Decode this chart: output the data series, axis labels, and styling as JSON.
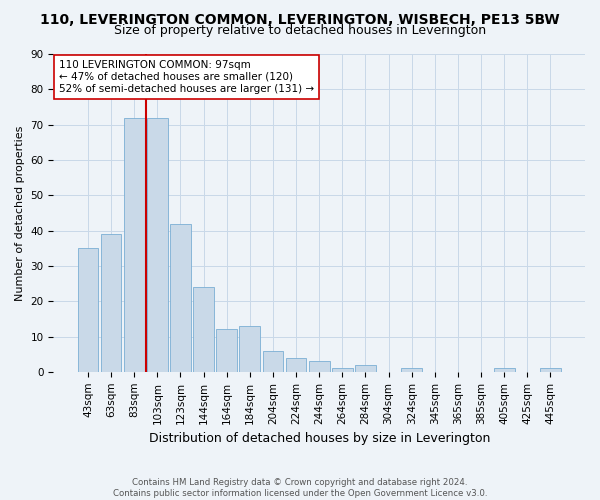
{
  "title": "110, LEVERINGTON COMMON, LEVERINGTON, WISBECH, PE13 5BW",
  "subtitle": "Size of property relative to detached houses in Leverington",
  "xlabel": "Distribution of detached houses by size in Leverington",
  "ylabel": "Number of detached properties",
  "categories": [
    "43sqm",
    "63sqm",
    "83sqm",
    "103sqm",
    "123sqm",
    "144sqm",
    "164sqm",
    "184sqm",
    "204sqm",
    "224sqm",
    "244sqm",
    "264sqm",
    "284sqm",
    "304sqm",
    "324sqm",
    "345sqm",
    "365sqm",
    "385sqm",
    "405sqm",
    "425sqm",
    "445sqm"
  ],
  "values": [
    35,
    39,
    72,
    72,
    42,
    24,
    12,
    13,
    6,
    4,
    3,
    1,
    2,
    0,
    1,
    0,
    0,
    0,
    1,
    0,
    1
  ],
  "bar_color": "#c9d9e8",
  "bar_edge_color": "#7bafd4",
  "grid_color": "#c8d8e8",
  "background_color": "#eef3f8",
  "vline_x_index": 2.5,
  "vline_color": "#cc0000",
  "annotation_text": "110 LEVERINGTON COMMON: 97sqm\n← 47% of detached houses are smaller (120)\n52% of semi-detached houses are larger (131) →",
  "annotation_box_color": "#ffffff",
  "annotation_box_edge": "#cc0000",
  "footer": "Contains HM Land Registry data © Crown copyright and database right 2024.\nContains public sector information licensed under the Open Government Licence v3.0.",
  "ylim": [
    0,
    90
  ],
  "yticks": [
    0,
    10,
    20,
    30,
    40,
    50,
    60,
    70,
    80,
    90
  ],
  "title_fontsize": 10,
  "subtitle_fontsize": 9,
  "tick_fontsize": 7.5,
  "ylabel_fontsize": 8,
  "xlabel_fontsize": 9
}
